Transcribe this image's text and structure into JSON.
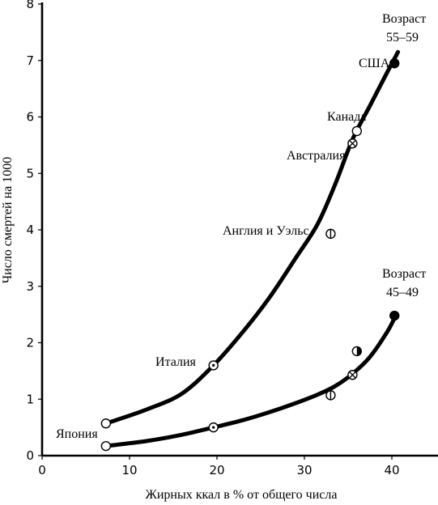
{
  "chart_data": {
    "type": "scatter",
    "title": "",
    "xlabel": "Жирных ккал в % от общего числа",
    "ylabel": "Число смертей на 1000",
    "xlim": [
      0,
      43
    ],
    "ylim": [
      0,
      8
    ],
    "x_ticks": [
      0,
      10,
      20,
      30,
      40
    ],
    "y_ticks": [
      0,
      1,
      2,
      3,
      4,
      5,
      6,
      7,
      8
    ],
    "grid": false,
    "series": [
      {
        "name": "Возраст 55–59",
        "label_lines": [
          "Возраст",
          "55–59"
        ],
        "curve": [
          [
            7.3,
            0.57
          ],
          [
            12,
            0.82
          ],
          [
            16,
            1.1
          ],
          [
            19.6,
            1.6
          ],
          [
            23,
            2.2
          ],
          [
            26,
            2.8
          ],
          [
            29,
            3.5
          ],
          [
            31.5,
            4.1
          ],
          [
            33.5,
            4.8
          ],
          [
            35.5,
            5.6
          ],
          [
            37.5,
            6.2
          ],
          [
            39.5,
            6.8
          ],
          [
            40.7,
            7.15
          ]
        ],
        "points": [
          {
            "country": "Япония",
            "x": 7.3,
            "y": 0.57,
            "marker": "open"
          },
          {
            "country": "Италия",
            "x": 19.6,
            "y": 1.6,
            "marker": "dot"
          },
          {
            "country": "Англия и Уэльс",
            "x": 33.0,
            "y": 3.93,
            "marker": "half"
          },
          {
            "country": "Австралия",
            "x": 35.5,
            "y": 5.53,
            "marker": "cross"
          },
          {
            "country": "Канада",
            "x": 36.0,
            "y": 5.75,
            "marker": "open"
          },
          {
            "country": "США",
            "x": 40.3,
            "y": 6.95,
            "marker": "filled"
          }
        ]
      },
      {
        "name": "Возраст 45–49",
        "label_lines": [
          "Возраст",
          "45–49"
        ],
        "curve": [
          [
            7.3,
            0.17
          ],
          [
            12,
            0.26
          ],
          [
            16,
            0.37
          ],
          [
            19.6,
            0.5
          ],
          [
            23,
            0.63
          ],
          [
            26,
            0.77
          ],
          [
            29,
            0.93
          ],
          [
            31.5,
            1.08
          ],
          [
            33.5,
            1.23
          ],
          [
            35.5,
            1.45
          ],
          [
            37.5,
            1.75
          ],
          [
            39.5,
            2.2
          ],
          [
            40.4,
            2.47
          ]
        ],
        "points": [
          {
            "country": "Япония",
            "x": 7.3,
            "y": 0.17,
            "marker": "open"
          },
          {
            "country": "Италия",
            "x": 19.6,
            "y": 0.5,
            "marker": "dot"
          },
          {
            "country": "Англия и Уэльс",
            "x": 33.0,
            "y": 1.07,
            "marker": "half"
          },
          {
            "country": "Австралия",
            "x": 35.5,
            "y": 1.43,
            "marker": "cross"
          },
          {
            "country": "Канада",
            "x": 36.0,
            "y": 1.85,
            "marker": "half-dark"
          },
          {
            "country": "США",
            "x": 40.3,
            "y": 2.48,
            "marker": "filled"
          }
        ]
      }
    ],
    "annotations": [
      "Япония",
      "Италия",
      "Англия и Уэльс",
      "Австралия",
      "Канада",
      "США"
    ]
  }
}
